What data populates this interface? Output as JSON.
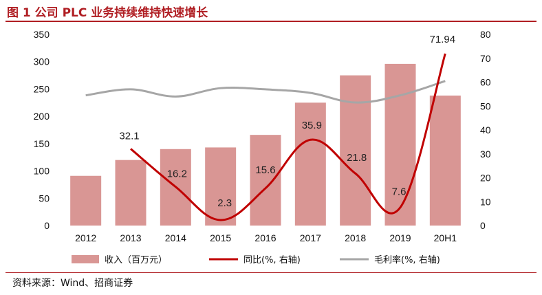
{
  "title": "图 1 公司 PLC 业务持续维持快速增长",
  "source": "资料来源：Wind、招商证券",
  "chart_data": {
    "type": "bar",
    "categories": [
      "2012",
      "2013",
      "2014",
      "2015",
      "2016",
      "2017",
      "2018",
      "2019",
      "20H1"
    ],
    "series": [
      {
        "name": "收入（百万元）",
        "type": "bar",
        "axis": "left",
        "values": [
          91,
          120,
          140,
          143,
          166,
          225,
          275,
          296,
          238
        ],
        "color": "#d99694"
      },
      {
        "name": "同比(%, 右轴)",
        "type": "line",
        "axis": "right",
        "values": [
          null,
          32.1,
          16.2,
          2.3,
          15.6,
          35.9,
          21.8,
          7.6,
          71.94
        ],
        "labels": [
          "",
          "32.1",
          "16.2",
          "2.3",
          "15.6",
          "35.9",
          "21.8",
          "7.6",
          "71.94"
        ],
        "color": "#c00000"
      },
      {
        "name": "毛利率(%, 右轴)",
        "type": "line",
        "axis": "right",
        "values": [
          54.5,
          57,
          54,
          57.5,
          57,
          55.5,
          51.5,
          54.5,
          60.5
        ],
        "color": "#a6a6a6"
      }
    ],
    "left_axis": {
      "ylim": [
        0,
        350
      ],
      "ticks": [
        0,
        50,
        100,
        150,
        200,
        250,
        300,
        350
      ]
    },
    "right_axis": {
      "ylim": [
        0,
        80
      ],
      "ticks": [
        0,
        10,
        20,
        30,
        40,
        50,
        60,
        70,
        80
      ]
    },
    "legend_position": "bottom",
    "grid": false
  }
}
